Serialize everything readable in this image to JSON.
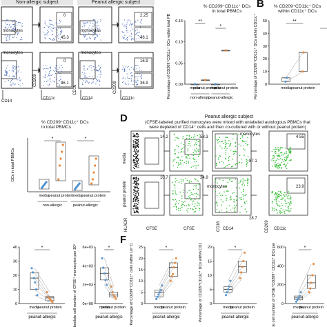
{
  "panelB": {
    "letter": "B"
  },
  "panelD": {
    "letter": "D"
  },
  "panelF": {
    "letter": "F"
  },
  "topleft": {
    "header_nonallergic": "Non-allergic subject",
    "header_peanut": "Peanut allergic subject",
    "gate_vals_non": [
      "0",
      "45.3",
      "0",
      "46.1"
    ],
    "gate_vals_pea": [
      "2.25",
      "46.1",
      "16.9",
      "36.9"
    ],
    "monocytes": "monocytes",
    "axis_cd209": "CD209",
    "axis_cd11c": "CD11c",
    "axis_cd14": "CD14",
    "axis_cd16": "CD16"
  },
  "chartB1": {
    "title": "% CD209⁺CD11c⁺ DCs",
    "title2": "in total PBMCs",
    "ylabel": "Percentage of CD209⁺CD11c⁺ DCs within total PBMCs",
    "ticks": [
      "0.00",
      "0.05",
      "0.10",
      "0.15"
    ],
    "xl": [
      "media",
      "peanut protein",
      "media",
      "peanut protein"
    ],
    "groups": [
      "non-allergic",
      "peanut-allergic"
    ],
    "sig": [
      "**",
      "*"
    ]
  },
  "chartB2": {
    "title": "% CD209⁺CD11c⁺ DCs",
    "title2": "within CD11c⁺ DCs",
    "ylabel": "Percentage of CD209⁺CD11c⁺ DCs within CD11c⁺ DCs",
    "ticks": [
      "0",
      "10",
      "20",
      "30",
      "40",
      "50"
    ],
    "xl": [
      "media",
      "peanut protein"
    ],
    "groups": [
      "non-allergic",
      "peanut-allergic"
    ],
    "sig": [
      "**",
      "*"
    ]
  },
  "chartC": {
    "title": "% CD209⁺CD11c⁺ DCs",
    "title2": "in total PBMCs",
    "ylabel": "DCs in total PBMCs",
    "xl": [
      "media",
      "peanut protein",
      "media",
      "peanut protein"
    ],
    "groups": [
      "non-allergic",
      "peanut-allergic"
    ],
    "sig": [
      "*",
      "*"
    ]
  },
  "panelDtext": {
    "subject": "Peanut allergic subject",
    "desc1": "(CFSE-labeled purified monocytes were mixed with unlabeled autologous PBMCs that",
    "desc2": "were depleted of CD14⁺ cells and then co-cultured with or without peanut protein)",
    "row1": "media",
    "row2": "peanut protein",
    "vals_r1": [
      "14.2",
      "58.3",
      "87.1",
      "4.55"
    ],
    "vals_r2": [
      "10.7",
      "34.9",
      "28.7",
      "23.9"
    ],
    "monocytes": "monocytes",
    "ax_hla": "HLADR",
    "ax_cfse": "CFSE",
    "ax_cd16": "CD16",
    "ax_cd14": "CD14",
    "ax_cd209": "CD209",
    "ax_cd11c": "CD11c"
  },
  "chartE1": {
    "ticks": [
      "0",
      "10",
      "20",
      "30",
      "40"
    ],
    "xl": [
      "media",
      "peanut protein"
    ],
    "group": "peanut-allergic",
    "sig": "*"
  },
  "chartE2": {
    "ylabel": "Absolute cell number of CFSE⁺ monocytes per 10⁶ cultured cells",
    "ticks": [
      "0e+00",
      "2e+03",
      "4e+03",
      "6e+03"
    ],
    "xl": [
      "media",
      "peanut protein"
    ],
    "group": "peanut-allergic",
    "sig": "*"
  },
  "chartF1": {
    "ylabel": "Percentage of CD209⁺CD11c⁺ cells within Lin⁻CFSE⁺ cells",
    "ticks": [
      "0",
      "5",
      "10",
      "15",
      "20",
      "25"
    ],
    "xl": [
      "media",
      "peanut protein"
    ],
    "group": "peanut-allergic",
    "sig": "*"
  },
  "chartF2": {
    "ylabel": "Percentage of CD209⁺CD11c⁺ DCs within CD11c⁺ cells",
    "ticks": [
      "0",
      "5",
      "10",
      "15",
      "20"
    ],
    "xl": [
      "media",
      "peanut protein"
    ],
    "group": "peanut-allergic",
    "sig": "*"
  },
  "chartF3": {
    "ylabel": "Absolute cell number of CFSE⁺CD209⁺ CD11c⁺ DCs per 10⁶ cultured cells",
    "ticks": [
      "0",
      "200",
      "400",
      "600"
    ],
    "xl": [
      "media",
      "peanut protein"
    ],
    "group": "peanut-allergic",
    "sig": "*"
  },
  "chart_data": [
    {
      "type": "scatter",
      "id": "B1",
      "categories": [
        "media",
        "peanut protein",
        "media",
        "peanut protein"
      ],
      "series": [
        {
          "values": [
            0.0,
            0.01,
            0.0,
            0.08
          ]
        }
      ],
      "ylim": [
        0,
        0.15
      ]
    },
    {
      "type": "scatter",
      "id": "B2",
      "categories": [
        "media",
        "peanut protein"
      ],
      "series": [
        {
          "values": [
            2,
            5
          ]
        },
        {
          "values": [
            10,
            25
          ]
        }
      ],
      "ylim": [
        0,
        50
      ]
    },
    {
      "type": "scatter",
      "id": "E1",
      "categories": [
        "media",
        "peanut protein"
      ],
      "series": [
        {
          "values": [
            25,
            22,
            18,
            15,
            10,
            6
          ]
        },
        {
          "values": [
            8,
            5,
            4,
            3,
            2,
            1
          ]
        }
      ],
      "ylim": [
        0,
        40
      ]
    },
    {
      "type": "scatter",
      "id": "E2",
      "categories": [
        "media",
        "peanut protein"
      ],
      "series": [
        {
          "values": [
            4800,
            3800,
            3200,
            2500,
            2000
          ]
        },
        {
          "values": [
            1800,
            1200,
            900,
            700,
            500
          ]
        }
      ],
      "ylim": [
        0,
        6000
      ]
    },
    {
      "type": "scatter",
      "id": "F1",
      "categories": [
        "media",
        "peanut protein"
      ],
      "series": [
        {
          "values": [
            2,
            3,
            4,
            5,
            6,
            8
          ]
        },
        {
          "values": [
            10,
            12,
            13,
            16,
            18,
            20
          ]
        }
      ],
      "ylim": [
        0,
        25
      ]
    },
    {
      "type": "scatter",
      "id": "F2",
      "categories": [
        "media",
        "peanut protein"
      ],
      "series": [
        {
          "values": [
            3,
            4,
            5,
            6,
            8
          ]
        },
        {
          "values": [
            9,
            11,
            13,
            15,
            18
          ]
        }
      ],
      "ylim": [
        0,
        20
      ]
    },
    {
      "type": "scatter",
      "id": "F3",
      "categories": [
        "media",
        "peanut protein"
      ],
      "series": [
        {
          "values": [
            20,
            40,
            60,
            80,
            120
          ]
        },
        {
          "values": [
            120,
            160,
            220,
            300,
            420
          ]
        }
      ],
      "ylim": [
        0,
        600
      ]
    }
  ]
}
